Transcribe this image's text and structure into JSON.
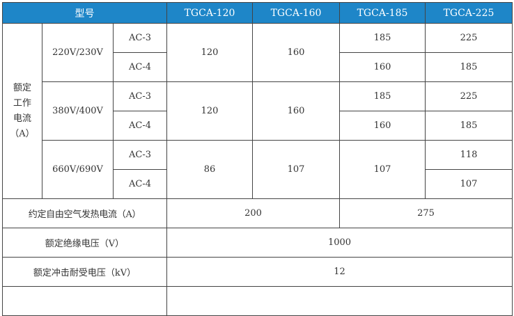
{
  "header": {
    "model_label": "型号",
    "models": [
      "TGCA-120",
      "TGCA-160",
      "TGCA-185",
      "TGCA-225"
    ]
  },
  "rated_current": {
    "label_lines": [
      "额定",
      "工作",
      "电流",
      "（A）"
    ],
    "groups": [
      {
        "voltage": "220V/230V",
        "ac3": "AC-3",
        "ac4": "AC-4",
        "tgca120": "120",
        "tgca160": "160",
        "tgca185": [
          "185",
          "160"
        ],
        "tgca225": [
          "225",
          "185"
        ]
      },
      {
        "voltage": "380V/400V",
        "ac3": "AC-3",
        "ac4": "AC-4",
        "tgca120": "120",
        "tgca160": "160",
        "tgca185": [
          "185",
          "160"
        ],
        "tgca225": [
          "225",
          "185"
        ]
      },
      {
        "voltage": "660V/690V",
        "ac3": "AC-3",
        "ac4": "AC-4",
        "tgca120": "86",
        "tgca160": "107",
        "tgca185": "107",
        "tgca225": [
          "118",
          "107"
        ]
      }
    ]
  },
  "thermal_current": {
    "label": "约定自由空气发热电流（A）",
    "values": [
      "200",
      "275"
    ]
  },
  "insulation_voltage": {
    "label": "额定绝缘电压（V）",
    "value": "1000"
  },
  "impulse_voltage": {
    "label": "额定冲击耐受电压（kV）",
    "value": "12"
  }
}
